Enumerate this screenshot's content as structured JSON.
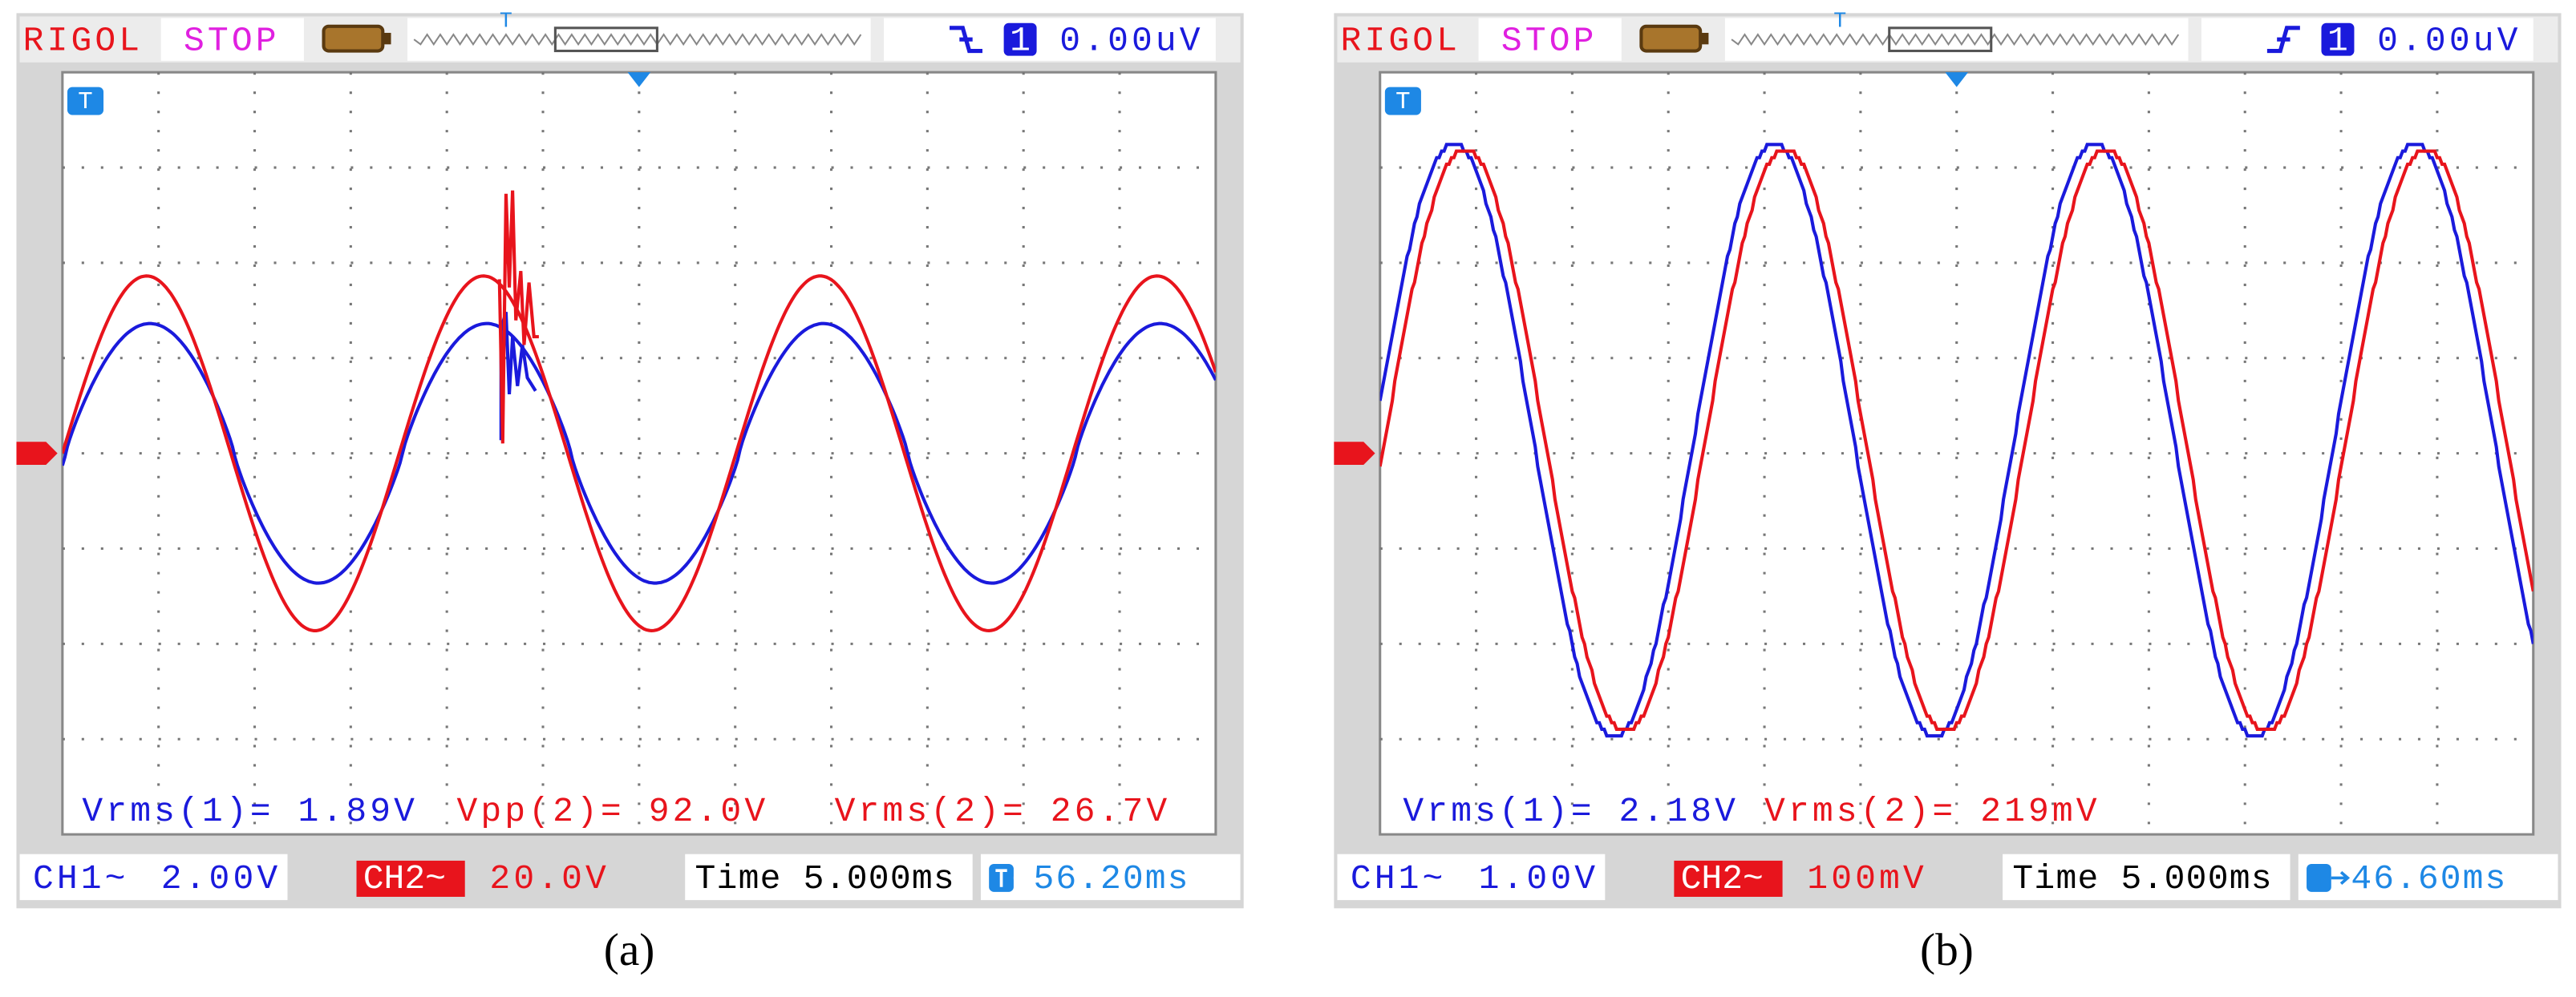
{
  "panels": [
    {
      "brand": "RIGOL",
      "status": "STOP",
      "trigger_channel": "1",
      "trigger_level": "0.00uV",
      "marker": "T",
      "measurements": [
        {
          "text": "Vrms(1)= 1.89V",
          "color": "#1a1adc"
        },
        {
          "text": "Vpp(2)= 92.0V",
          "color": "#e8141c"
        },
        {
          "text": "Vrms(2)= 26.7V",
          "color": "#e8141c"
        }
      ],
      "ch1": "CH1~",
      "ch1_scale": "2.00V",
      "ch2": "CH2~",
      "ch2_scale": "20.0V",
      "time": "Time 5.000ms",
      "offset": "56.20ms",
      "caption": "(a)"
    },
    {
      "brand": "RIGOL",
      "status": "STOP",
      "trigger_channel": "1",
      "trigger_level": "0.00uV",
      "marker": "T",
      "measurements": [
        {
          "text": "Vrms(1)= 2.18V",
          "color": "#1a1adc"
        },
        {
          "text": "Vrms(2)= 219mV",
          "color": "#e8141c"
        }
      ],
      "ch1": "CH1~",
      "ch1_scale": "1.00V",
      "ch2": "CH2~",
      "ch2_scale": "100mV",
      "time": "Time 5.000ms",
      "offset": "46.60ms",
      "caption": "(b)"
    }
  ]
}
